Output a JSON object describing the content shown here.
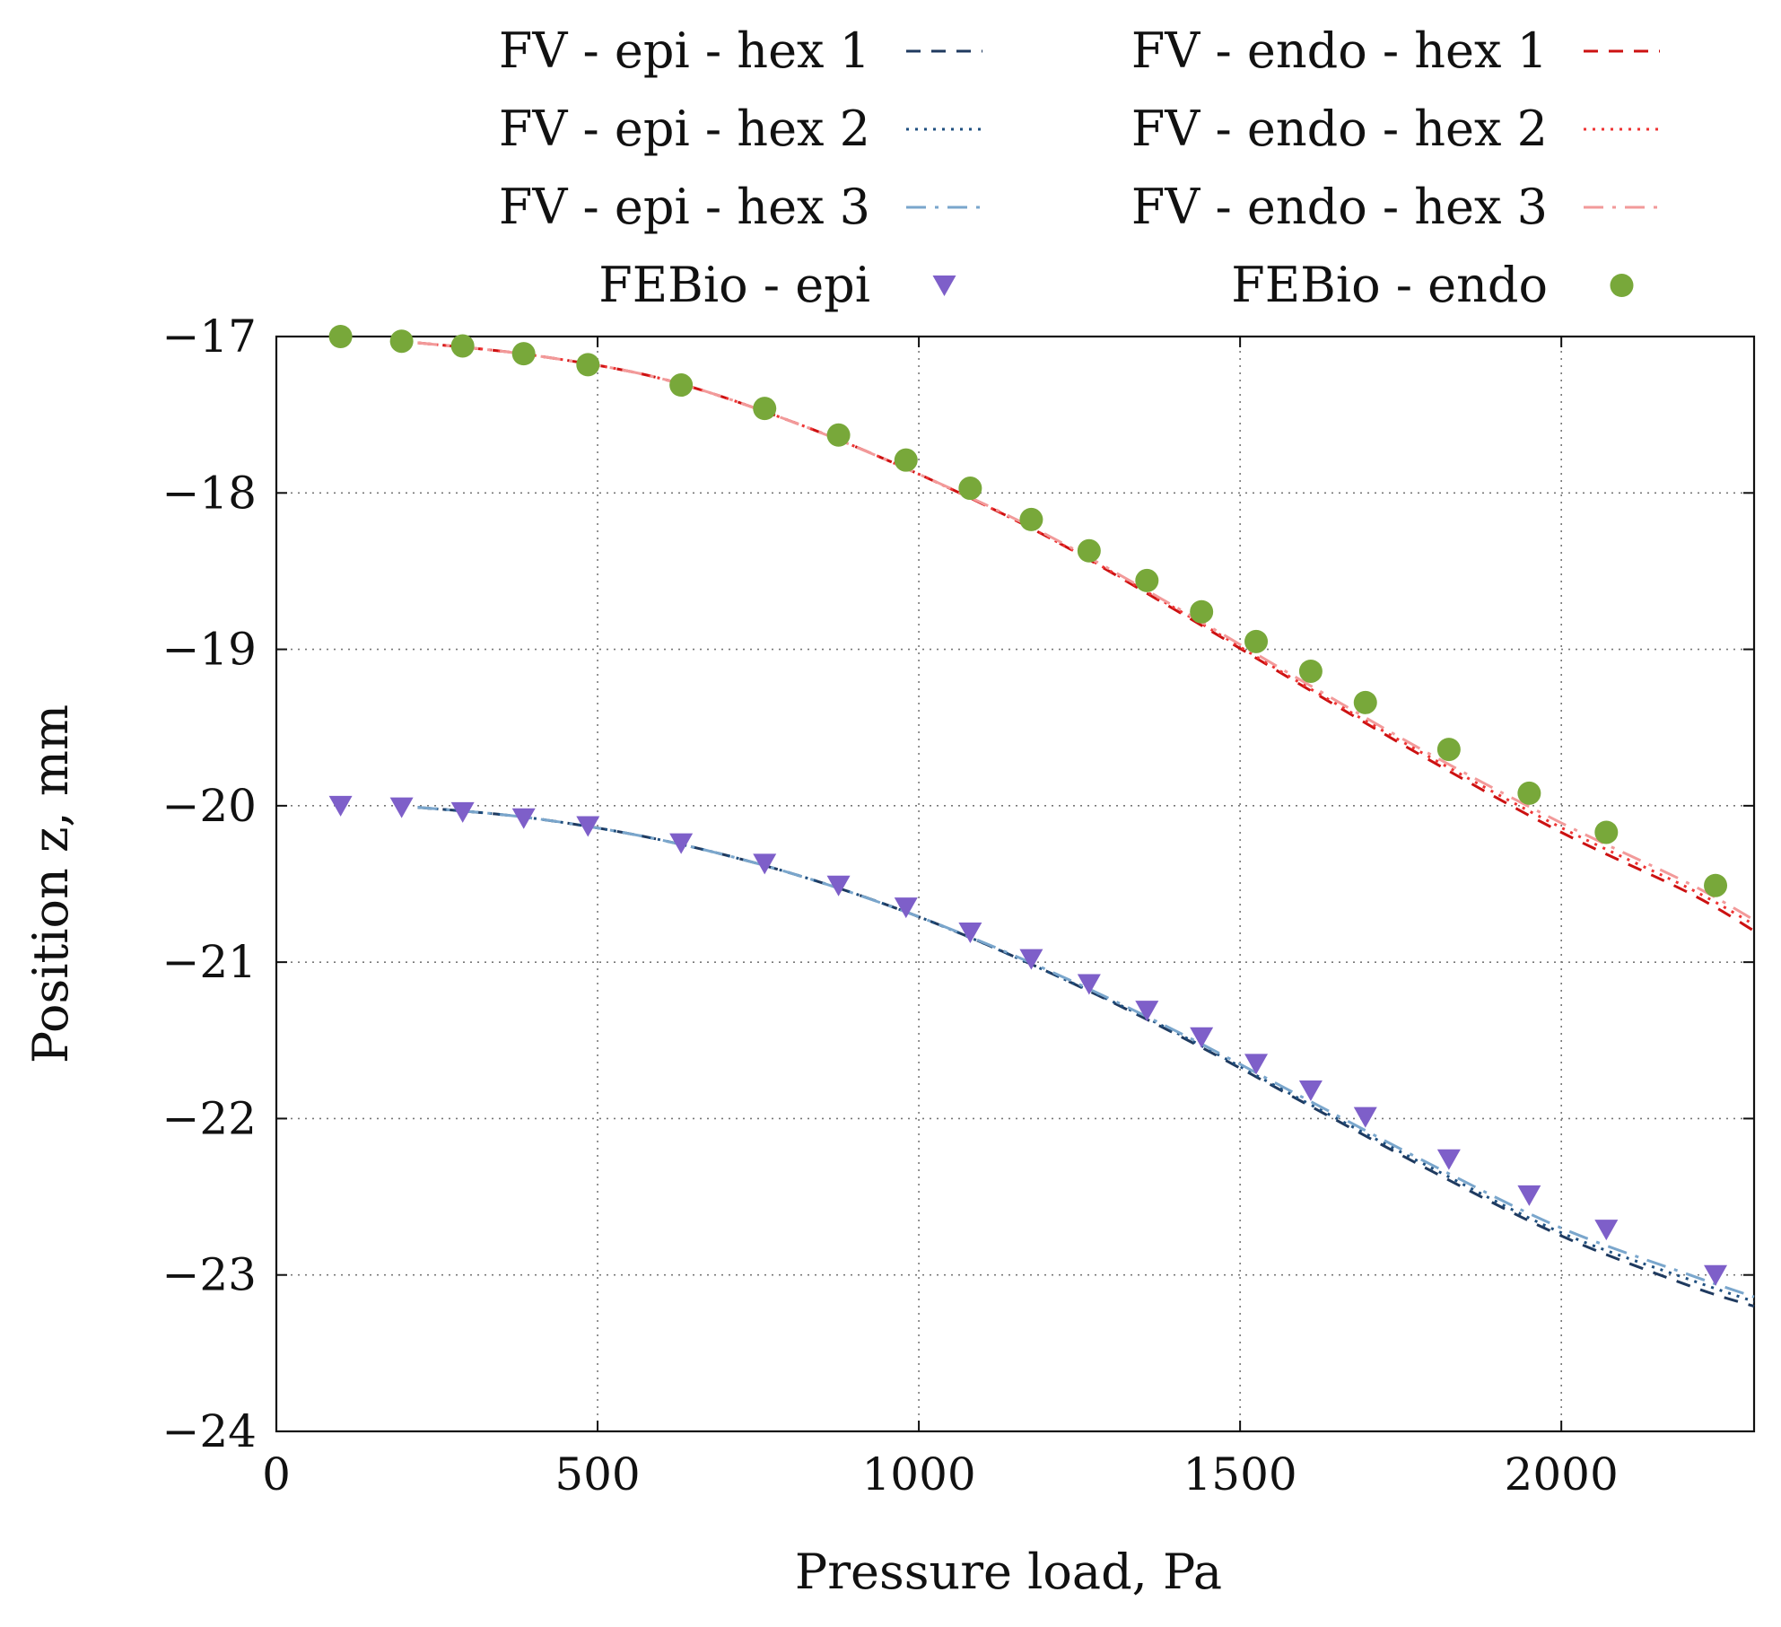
{
  "chart_data": {
    "type": "line",
    "title": "",
    "xlabel": "Pressure load, Pa",
    "ylabel": "Position z, mm",
    "xlim": [
      0,
      2300
    ],
    "ylim": [
      -24,
      -17
    ],
    "xticks": [
      0,
      500,
      1000,
      1500,
      2000
    ],
    "xtick_labels": [
      "0",
      "500",
      "1000",
      "1500",
      "2000"
    ],
    "yticks": [
      -17,
      -18,
      -19,
      -20,
      -21,
      -22,
      -23,
      -24
    ],
    "ytick_labels": [
      "−17",
      "−18",
      "−19",
      "−20",
      "−21",
      "−22",
      "−23",
      "−24"
    ],
    "grid": true,
    "legend_position": "top",
    "series": [
      {
        "name": "FV - epi - hex 1",
        "kind": "line",
        "style": "dashed",
        "color": "#1f3a5f",
        "x": [
          220,
          400,
          600,
          800,
          1000,
          1200,
          1400,
          1600,
          1800,
          2000,
          2200,
          2300
        ],
        "y": [
          -20.01,
          -20.08,
          -20.22,
          -20.43,
          -20.71,
          -21.06,
          -21.46,
          -21.9,
          -22.34,
          -22.75,
          -23.07,
          -23.2
        ]
      },
      {
        "name": "FV - epi - hex 2",
        "kind": "line",
        "style": "dotted",
        "color": "#1f4f7f",
        "x": [
          220,
          400,
          600,
          800,
          1000,
          1200,
          1400,
          1600,
          1800,
          2000,
          2200,
          2300
        ],
        "y": [
          -20.01,
          -20.08,
          -20.22,
          -20.43,
          -20.71,
          -21.06,
          -21.45,
          -21.89,
          -22.32,
          -22.73,
          -23.03,
          -23.17
        ]
      },
      {
        "name": "FV - epi - hex 3",
        "kind": "line",
        "style": "dash-dot",
        "color": "#7aa6cc",
        "x": [
          220,
          400,
          600,
          800,
          1000,
          1200,
          1400,
          1600,
          1800,
          2000,
          2200,
          2300
        ],
        "y": [
          -20.01,
          -20.08,
          -20.22,
          -20.43,
          -20.71,
          -21.05,
          -21.44,
          -21.87,
          -22.3,
          -22.7,
          -23.0,
          -23.14
        ]
      },
      {
        "name": "FV - endo - hex 1",
        "kind": "line",
        "style": "dashed",
        "color": "#cc1111",
        "x": [
          220,
          400,
          600,
          800,
          1000,
          1200,
          1400,
          1600,
          1800,
          2000,
          2200,
          2300
        ],
        "y": [
          -17.04,
          -17.12,
          -17.27,
          -17.54,
          -17.88,
          -18.28,
          -18.75,
          -19.24,
          -19.72,
          -20.17,
          -20.56,
          -20.8
        ]
      },
      {
        "name": "FV - endo - hex 2",
        "kind": "line",
        "style": "dotted",
        "color": "#ee3333",
        "x": [
          220,
          400,
          600,
          800,
          1000,
          1200,
          1400,
          1600,
          1800,
          2000,
          2200,
          2300
        ],
        "y": [
          -17.04,
          -17.12,
          -17.27,
          -17.54,
          -17.88,
          -18.28,
          -18.74,
          -19.23,
          -19.7,
          -20.14,
          -20.53,
          -20.76
        ]
      },
      {
        "name": "FV - endo - hex 3",
        "kind": "line",
        "style": "dash-dot",
        "color": "#f29a9a",
        "x": [
          220,
          400,
          600,
          800,
          1000,
          1200,
          1400,
          1600,
          1800,
          2000,
          2200,
          2300
        ],
        "y": [
          -17.04,
          -17.12,
          -17.27,
          -17.54,
          -17.88,
          -18.27,
          -18.73,
          -19.21,
          -19.68,
          -20.11,
          -20.5,
          -20.73
        ]
      },
      {
        "name": "FEBio - epi",
        "kind": "scatter",
        "marker": "triangle-down",
        "color": "#7e5fc9",
        "x": [
          100,
          195,
          290,
          385,
          485,
          630,
          760,
          875,
          980,
          1080,
          1175,
          1265,
          1355,
          1440,
          1525,
          1610,
          1695,
          1825,
          1950,
          2070,
          2240
        ],
        "y": [
          -20.0,
          -20.01,
          -20.04,
          -20.08,
          -20.13,
          -20.24,
          -20.37,
          -20.51,
          -20.65,
          -20.81,
          -20.98,
          -21.14,
          -21.31,
          -21.48,
          -21.65,
          -21.82,
          -21.99,
          -22.26,
          -22.49,
          -22.71,
          -23.0
        ]
      },
      {
        "name": "FEBio - endo",
        "kind": "scatter",
        "marker": "circle",
        "color": "#78a83a",
        "x": [
          100,
          195,
          290,
          385,
          485,
          630,
          760,
          875,
          980,
          1080,
          1175,
          1265,
          1355,
          1440,
          1525,
          1610,
          1695,
          1825,
          1950,
          2070,
          2240
        ],
        "y": [
          -17.0,
          -17.03,
          -17.06,
          -17.11,
          -17.18,
          -17.31,
          -17.46,
          -17.63,
          -17.79,
          -17.97,
          -18.17,
          -18.37,
          -18.56,
          -18.76,
          -18.95,
          -19.14,
          -19.34,
          -19.64,
          -19.92,
          -20.17,
          -20.51
        ]
      }
    ]
  }
}
